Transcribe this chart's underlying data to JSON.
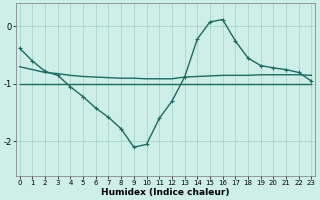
{
  "title": "",
  "xlabel": "Humidex (Indice chaleur)",
  "background_color": "#ceeee8",
  "grid_color": "#aad4cc",
  "line_color": "#1a6b60",
  "x_ticks": [
    0,
    1,
    2,
    3,
    4,
    5,
    6,
    7,
    8,
    9,
    10,
    11,
    12,
    13,
    14,
    15,
    16,
    17,
    18,
    19,
    20,
    21,
    22,
    23
  ],
  "y_ticks": [
    -2,
    -1,
    0
  ],
  "xlim": [
    -0.3,
    23.3
  ],
  "ylim": [
    -2.6,
    0.4
  ],
  "series": [
    {
      "x": [
        0,
        1,
        2,
        3,
        4,
        5,
        6,
        7,
        8,
        9,
        10,
        11,
        12,
        13,
        14,
        15,
        16,
        17,
        18,
        19,
        20,
        21,
        22,
        23
      ],
      "y": [
        -1.0,
        -1.0,
        -1.0,
        -1.0,
        -1.0,
        -1.0,
        -1.0,
        -1.0,
        -1.0,
        -1.0,
        -1.0,
        -1.0,
        -1.0,
        -1.0,
        -1.0,
        -1.0,
        -1.0,
        -1.0,
        -1.0,
        -1.0,
        -1.0,
        -1.0,
        -1.0,
        -1.0
      ],
      "has_markers": false,
      "linewidth": 1.0
    },
    {
      "x": [
        0,
        1,
        2,
        3,
        4,
        5,
        6,
        7,
        8,
        9,
        10,
        11,
        12,
        13,
        14,
        15,
        16,
        17,
        18,
        19,
        20,
        21,
        22,
        23
      ],
      "y": [
        -0.7,
        -0.75,
        -0.8,
        -0.82,
        -0.85,
        -0.87,
        -0.88,
        -0.89,
        -0.9,
        -0.9,
        -0.91,
        -0.91,
        -0.91,
        -0.88,
        -0.87,
        -0.86,
        -0.85,
        -0.85,
        -0.85,
        -0.84,
        -0.84,
        -0.84,
        -0.84,
        -0.85
      ],
      "has_markers": false,
      "linewidth": 1.0
    },
    {
      "x": [
        0,
        1,
        2,
        3,
        4,
        5,
        6,
        7,
        8,
        9,
        10,
        11,
        12,
        13,
        14,
        15,
        16,
        17,
        18,
        19,
        20,
        21,
        22,
        23
      ],
      "y": [
        -0.38,
        -0.6,
        -0.78,
        -0.85,
        -1.05,
        -1.22,
        -1.42,
        -1.58,
        -1.78,
        -2.1,
        -2.05,
        -1.6,
        -1.3,
        -0.88,
        -0.22,
        0.08,
        0.12,
        -0.25,
        -0.55,
        -0.68,
        -0.72,
        -0.75,
        -0.8,
        -0.95
      ],
      "has_markers": true,
      "linewidth": 1.0
    }
  ]
}
